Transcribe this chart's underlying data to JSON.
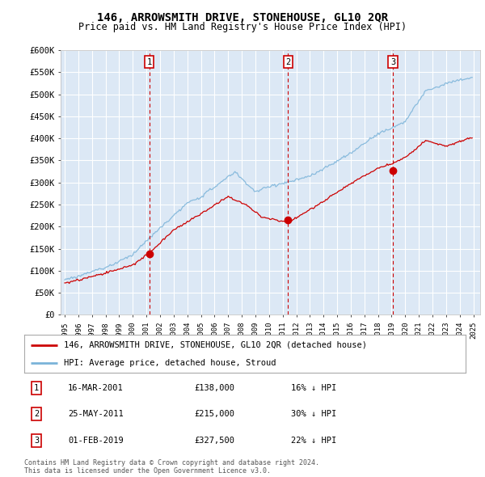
{
  "title": "146, ARROWSMITH DRIVE, STONEHOUSE, GL10 2QR",
  "subtitle": "Price paid vs. HM Land Registry's House Price Index (HPI)",
  "ylim": [
    0,
    600000
  ],
  "yticks": [
    0,
    50000,
    100000,
    150000,
    200000,
    250000,
    300000,
    350000,
    400000,
    450000,
    500000,
    550000,
    600000
  ],
  "ytick_labels": [
    "£0",
    "£50K",
    "£100K",
    "£150K",
    "£200K",
    "£250K",
    "£300K",
    "£350K",
    "£400K",
    "£450K",
    "£500K",
    "£550K",
    "£600K"
  ],
  "xlim_start": 1994.7,
  "xlim_end": 2025.5,
  "bg_color": "#dce8f5",
  "grid_color": "#ffffff",
  "line_color_hpi": "#7ab3d9",
  "line_color_price": "#cc0000",
  "sale_dates": [
    2001.21,
    2011.4,
    2019.09
  ],
  "sale_values": [
    138000,
    215000,
    327500
  ],
  "sale_labels": [
    "1",
    "2",
    "3"
  ],
  "legend_price_label": "146, ARROWSMITH DRIVE, STONEHOUSE, GL10 2QR (detached house)",
  "legend_hpi_label": "HPI: Average price, detached house, Stroud",
  "table_rows": [
    [
      "1",
      "16-MAR-2001",
      "£138,000",
      "16% ↓ HPI"
    ],
    [
      "2",
      "25-MAY-2011",
      "£215,000",
      "30% ↓ HPI"
    ],
    [
      "3",
      "01-FEB-2019",
      "£327,500",
      "22% ↓ HPI"
    ]
  ],
  "footnote1": "Contains HM Land Registry data © Crown copyright and database right 2024.",
  "footnote2": "This data is licensed under the Open Government Licence v3.0."
}
